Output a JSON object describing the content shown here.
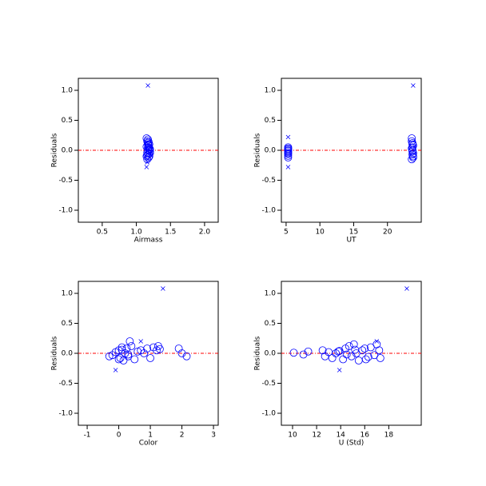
{
  "chart_data": [
    {
      "type": "scatter",
      "xlabel": "Airmass",
      "ylabel": "Residuals",
      "xlim": [
        0.15,
        2.2
      ],
      "ylim": [
        -1.2,
        1.2
      ],
      "xticks": [
        0.5,
        {
          "value": 1.0,
          "label": "1.0"
        },
        1.5,
        {
          "value": 2.0,
          "label": "2.0"
        }
      ],
      "yticks": [
        {
          "value": 1.0,
          "label": "1.0"
        },
        0.5,
        {
          "value": 0.0,
          "label": "0.0"
        },
        -0.5,
        {
          "value": -1.0,
          "label": "-1.0"
        }
      ],
      "hline": 0,
      "hline_color": "#ff0000",
      "series": [
        {
          "color": "#0000ff",
          "marker": "circle",
          "x": [
            1.15,
            1.16,
            1.17,
            1.18,
            1.19,
            1.2,
            1.15,
            1.16,
            1.17,
            1.18,
            1.19,
            1.2,
            1.15,
            1.16,
            1.17,
            1.18,
            1.19,
            1.2,
            1.16,
            1.17,
            1.18,
            1.19,
            1.17,
            1.18
          ],
          "values": [
            0.2,
            0.15,
            0.1,
            0.05,
            0.0,
            -0.05,
            -0.1,
            -0.15,
            0.12,
            0.08,
            0.03,
            -0.02,
            0.06,
            -0.08,
            0.18,
            -0.12,
            0.1,
            0.02,
            -0.04,
            0.0,
            0.14,
            -0.1,
            0.04,
            -0.06
          ]
        },
        {
          "color": "#0000ff",
          "marker": "cross",
          "x": [
            1.17,
            1.15,
            1.16
          ],
          "values": [
            1.08,
            -0.28,
            -0.2
          ]
        }
      ]
    },
    {
      "type": "scatter",
      "xlabel": "UT",
      "ylabel": "Residuals",
      "xlim": [
        4.3,
        25
      ],
      "ylim": [
        -1.2,
        1.2
      ],
      "xticks": [
        5,
        10,
        15,
        20
      ],
      "yticks": [
        {
          "value": 1.0,
          "label": "1.0"
        },
        0.5,
        {
          "value": 0.0,
          "label": "0.0"
        },
        -0.5,
        {
          "value": -1.0,
          "label": "-1.0"
        }
      ],
      "hline": 0,
      "hline_color": "#ff0000",
      "series": [
        {
          "color": "#0000ff",
          "marker": "circle",
          "x": [
            5.3,
            5.3,
            5.3,
            5.3,
            5.3,
            5.3,
            5.3,
            5.3,
            5.3,
            5.3,
            23.6,
            23.6,
            23.7,
            23.7,
            23.7,
            23.8,
            23.8,
            23.6,
            23.7,
            23.8,
            23.7,
            23.6,
            23.8,
            23.7
          ],
          "values": [
            0.05,
            0.02,
            0.0,
            -0.03,
            -0.06,
            -0.09,
            -0.12,
            0.03,
            -0.01,
            -0.05,
            0.2,
            0.15,
            0.1,
            0.05,
            0.0,
            -0.05,
            -0.1,
            -0.15,
            0.12,
            0.08,
            -0.02,
            0.03,
            -0.12,
            -0.07
          ]
        },
        {
          "color": "#0000ff",
          "marker": "cross",
          "x": [
            23.8,
            5.3,
            5.3
          ],
          "values": [
            1.08,
            -0.28,
            0.22
          ]
        }
      ]
    },
    {
      "type": "scatter",
      "xlabel": "Color",
      "ylabel": "Residuals",
      "xlim": [
        -1.28,
        3.15
      ],
      "ylim": [
        -1.2,
        1.2
      ],
      "xticks": [
        -1,
        0,
        1,
        2,
        3
      ],
      "yticks": [
        {
          "value": 1.0,
          "label": "1.0"
        },
        0.5,
        {
          "value": 0.0,
          "label": "0.0"
        },
        -0.5,
        {
          "value": -1.0,
          "label": "-1.0"
        }
      ],
      "hline": 0,
      "hline_color": "#ff0000",
      "series": [
        {
          "color": "#0000ff",
          "marker": "circle",
          "x": [
            -0.3,
            -0.2,
            -0.1,
            0.0,
            0.05,
            0.1,
            0.15,
            0.2,
            0.25,
            0.3,
            0.35,
            0.4,
            0.5,
            0.6,
            0.7,
            0.8,
            0.9,
            1.0,
            1.1,
            1.2,
            1.25,
            1.3,
            1.9,
            2.0,
            2.15,
            0.0,
            0.1,
            0.3
          ],
          "values": [
            -0.05,
            -0.03,
            0.02,
            0.05,
            -0.08,
            0.1,
            -0.12,
            0.0,
            0.08,
            -0.05,
            0.2,
            0.12,
            -0.1,
            0.03,
            0.05,
            0.0,
            0.08,
            -0.08,
            0.1,
            0.05,
            0.12,
            0.07,
            0.08,
            0.0,
            -0.05,
            -0.1,
            0.06,
            -0.02
          ]
        },
        {
          "color": "#0000ff",
          "marker": "cross",
          "x": [
            1.4,
            -0.1,
            0.7
          ],
          "values": [
            1.08,
            -0.28,
            0.2
          ]
        }
      ]
    },
    {
      "type": "scatter",
      "xlabel": "U (Std)",
      "ylabel": "Residuals",
      "xlim": [
        9.07,
        20.7
      ],
      "ylim": [
        -1.2,
        1.2
      ],
      "xticks": [
        10,
        12,
        14,
        16,
        18
      ],
      "yticks": [
        {
          "value": 1.0,
          "label": "1.0"
        },
        0.5,
        {
          "value": 0.0,
          "label": "0.0"
        },
        -0.5,
        {
          "value": -1.0,
          "label": "-1.0"
        }
      ],
      "hline": 0,
      "hline_color": "#ff0000",
      "series": [
        {
          "color": "#0000ff",
          "marker": "circle",
          "x": [
            10.1,
            10.9,
            11.3,
            12.5,
            12.7,
            13.0,
            13.3,
            13.6,
            13.9,
            14.2,
            14.4,
            14.7,
            14.9,
            15.1,
            15.3,
            15.5,
            15.8,
            16.0,
            16.3,
            16.5,
            16.8,
            17.0,
            17.2,
            17.3,
            14.5,
            15.2,
            16.1,
            13.8
          ],
          "values": [
            0.01,
            -0.02,
            0.03,
            0.05,
            -0.05,
            0.02,
            -0.08,
            0.0,
            0.04,
            -0.1,
            0.08,
            0.12,
            -0.05,
            0.15,
            0.0,
            -0.12,
            0.05,
            0.08,
            -0.06,
            0.1,
            -0.03,
            0.15,
            0.05,
            -0.08,
            -0.02,
            0.06,
            -0.1,
            0.03
          ]
        },
        {
          "color": "#0000ff",
          "marker": "cross",
          "x": [
            19.5,
            13.9,
            17.0
          ],
          "values": [
            1.08,
            -0.28,
            0.2
          ]
        }
      ]
    }
  ]
}
